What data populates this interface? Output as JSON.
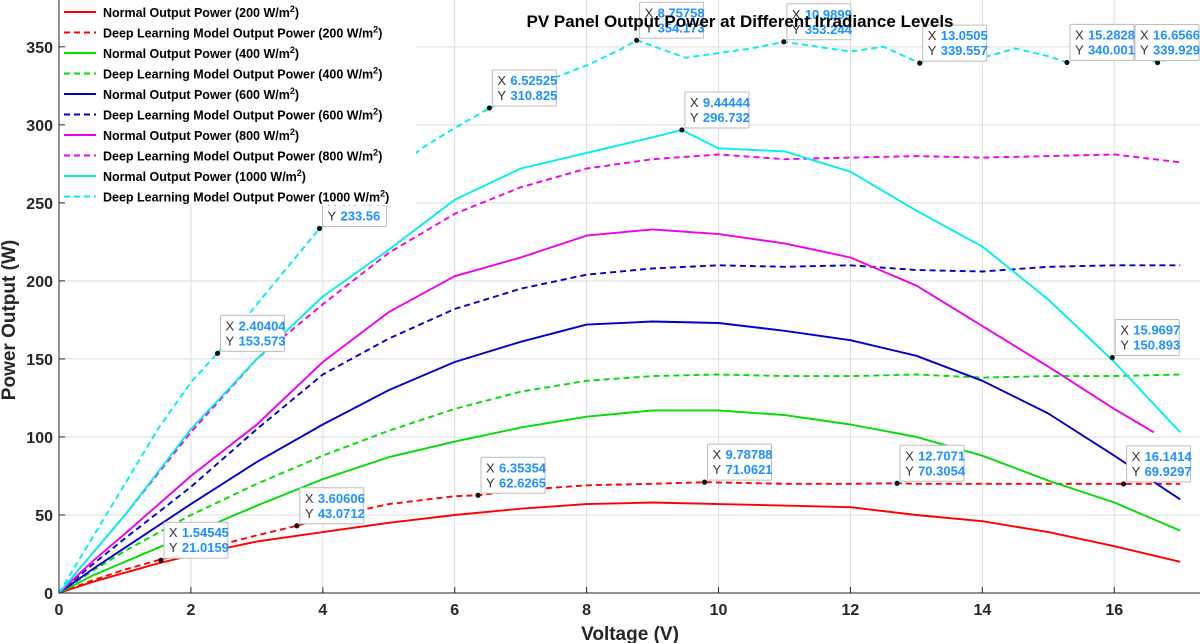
{
  "chart_data": {
    "type": "line",
    "title": "PV Panel Output Power at Different Irradiance Levels",
    "xlabel": "Voltage (V)",
    "ylabel": "Power Output (W)",
    "xlim": [
      0,
      17.3
    ],
    "ylim": [
      0,
      380
    ],
    "xticks": [
      0,
      2,
      4,
      6,
      8,
      10,
      12,
      14,
      16
    ],
    "yticks": [
      0,
      50,
      100,
      150,
      200,
      250,
      300,
      350
    ],
    "grid": true,
    "legend_position": "top-left",
    "series": [
      {
        "name": "Normal Output Power (200 W/m",
        "sup": "2",
        "close": ")",
        "color": "#ff0000",
        "dash": "solid",
        "x": [
          0,
          0.5,
          1,
          1.5,
          2,
          3,
          4,
          5,
          6,
          7,
          8,
          9,
          10,
          11,
          12,
          13,
          14,
          15,
          16,
          17
        ],
        "y": [
          0,
          7,
          13,
          19,
          24,
          33,
          39,
          45,
          50,
          54,
          57,
          58,
          57,
          56,
          55,
          50,
          46,
          39,
          30,
          20
        ]
      },
      {
        "name": "Deep Learning Model Output Power (200 W/m",
        "sup": "2",
        "close": ")",
        "color": "#ff0000",
        "dash": "dashed",
        "x": [
          0,
          0.5,
          1,
          1.5,
          2,
          3,
          3.6,
          4,
          5,
          6,
          6.35,
          7,
          8,
          9,
          9.79,
          11,
          12,
          12.7,
          13,
          14,
          15,
          16,
          16.14,
          17
        ],
        "y": [
          0,
          8,
          15,
          21,
          26,
          37,
          43,
          48,
          57,
          62,
          62.6,
          66,
          69,
          70,
          71,
          70,
          70,
          70.3,
          70,
          70,
          70,
          70,
          69.9,
          70
        ]
      },
      {
        "name": "Normal Output Power (400 W/m",
        "sup": "2",
        "close": ")",
        "color": "#00dd00",
        "dash": "solid",
        "x": [
          0,
          0.5,
          1,
          2,
          3,
          4,
          5,
          6,
          7,
          8,
          9,
          10,
          11,
          12,
          13,
          14,
          15,
          16,
          17
        ],
        "y": [
          0,
          11,
          20,
          38,
          56,
          73,
          87,
          97,
          106,
          113,
          117,
          117,
          114,
          108,
          100,
          88,
          72,
          58,
          40
        ]
      },
      {
        "name": "Deep Learning Model Output Power (400 W/m",
        "sup": "2",
        "close": ")",
        "color": "#00dd00",
        "dash": "dashed",
        "x": [
          0,
          0.5,
          1,
          2,
          3,
          4,
          5,
          6,
          7,
          8,
          9,
          10,
          11,
          12,
          13,
          14,
          15,
          16,
          17
        ],
        "y": [
          0,
          14,
          27,
          50,
          70,
          88,
          104,
          118,
          129,
          136,
          139,
          140,
          139,
          139,
          140,
          138,
          139,
          139,
          140
        ]
      },
      {
        "name": "Normal Output Power (600 W/m",
        "sup": "2",
        "close": ")",
        "color": "#0000cc",
        "dash": "solid",
        "x": [
          0,
          0.5,
          1,
          2,
          3,
          4,
          5,
          6,
          7,
          8,
          9,
          10,
          11,
          12,
          13,
          14,
          15,
          16,
          17
        ],
        "y": [
          0,
          15,
          29,
          57,
          84,
          108,
          130,
          148,
          161,
          172,
          174,
          173,
          168,
          162,
          152,
          136,
          115,
          88,
          60
        ]
      },
      {
        "name": "Deep Learning Model Output Power (600 W/m",
        "sup": "2",
        "close": ")",
        "color": "#0000cc",
        "dash": "dashed",
        "x": [
          0,
          0.5,
          1,
          2,
          3,
          4,
          5,
          6,
          7,
          8,
          9,
          10,
          11,
          12,
          13,
          14,
          15,
          16,
          17
        ],
        "y": [
          0,
          18,
          35,
          68,
          105,
          140,
          163,
          182,
          195,
          204,
          208,
          210,
          209,
          210,
          207,
          206,
          209,
          210,
          210
        ]
      },
      {
        "name": "Normal Output Power (800 W/m",
        "sup": "2",
        "close": ")",
        "color": "#ee00ee",
        "dash": "solid",
        "x": [
          0,
          0.5,
          1,
          2,
          3,
          4,
          5,
          6,
          7,
          8,
          9,
          10,
          11,
          12,
          13,
          14,
          15,
          16,
          16.6
        ],
        "y": [
          0,
          20,
          38,
          75,
          108,
          148,
          180,
          203,
          215,
          229,
          233,
          230,
          224,
          215,
          197,
          171,
          145,
          118,
          103
        ]
      },
      {
        "name": "Deep Learning Model Output Power (800 W/m",
        "sup": "2",
        "close": ")",
        "color": "#ee00ee",
        "dash": "dashed",
        "x": [
          0,
          0.5,
          1,
          2,
          3,
          4,
          5,
          6,
          7,
          8,
          9,
          10,
          11,
          12,
          13,
          14,
          15,
          16,
          17
        ],
        "y": [
          0,
          25,
          50,
          103,
          150,
          185,
          218,
          243,
          260,
          272,
          278,
          281,
          278,
          279,
          280,
          279,
          280,
          281,
          276
        ]
      },
      {
        "name": "Normal Output Power (1000 W/m",
        "sup": "2",
        "close": ")",
        "color": "#00eeee",
        "dash": "solid",
        "x": [
          0,
          0.5,
          1,
          2,
          3,
          4,
          5,
          6,
          7,
          8,
          9,
          9.44,
          10,
          11,
          12,
          13,
          14,
          15,
          16,
          17
        ],
        "y": [
          0,
          25,
          50,
          105,
          150,
          190,
          220,
          252,
          272,
          282,
          292,
          296.7,
          285,
          283,
          270,
          245,
          222,
          188,
          148,
          103
        ]
      },
      {
        "name": "Deep Learning Model Output Power (1000 W/m",
        "sup": "2",
        "close": ")",
        "color": "#00eeee",
        "dash": "dashed",
        "x": [
          0,
          0.5,
          1,
          1.5,
          2,
          2.4,
          3,
          3.95,
          4.5,
          5,
          5.5,
          6,
          6.53,
          7,
          7.5,
          8,
          8.5,
          8.76,
          9.5,
          10,
          10.5,
          10.99,
          11.5,
          12,
          12.5,
          13.05,
          13.5,
          14,
          14.5,
          15,
          15.28,
          15.5,
          16,
          16.66,
          17
        ],
        "y": [
          0,
          35,
          70,
          105,
          135,
          153.6,
          185,
          233.6,
          250,
          268,
          285,
          298,
          310.8,
          320,
          330,
          338,
          348,
          354.2,
          343,
          346,
          349,
          353.2,
          350,
          347,
          350,
          339.6,
          347,
          343,
          349,
          344,
          340,
          350,
          349,
          339.9,
          345
        ]
      }
    ],
    "datatips": [
      {
        "x": "1.54545",
        "y": "21.0159"
      },
      {
        "x": "3.60606",
        "y": "43.0712"
      },
      {
        "x": "6.35354",
        "y": "62.6265"
      },
      {
        "x": "9.78788",
        "y": "71.0621"
      },
      {
        "x": "12.7071",
        "y": "70.3054"
      },
      {
        "x": "16.1414",
        "y": "69.9297"
      },
      {
        "x": "2.40404",
        "y": "153.573"
      },
      {
        "x": "3.94949",
        "y": "233.56"
      },
      {
        "x": "6.52525",
        "y": "310.825"
      },
      {
        "x": "9.44444",
        "y": "296.732"
      },
      {
        "x": "8.75758",
        "y": "354.173"
      },
      {
        "x": "10.9899",
        "y": "353.244"
      },
      {
        "x": "13.0505",
        "y": "339.557"
      },
      {
        "x": "15.2828",
        "y": "340.001"
      },
      {
        "x": "16.6566",
        "y": "339.929"
      },
      {
        "x": "15.9697",
        "y": "150.893"
      }
    ],
    "datatip_keys": {
      "x": "X",
      "y": "Y"
    }
  }
}
